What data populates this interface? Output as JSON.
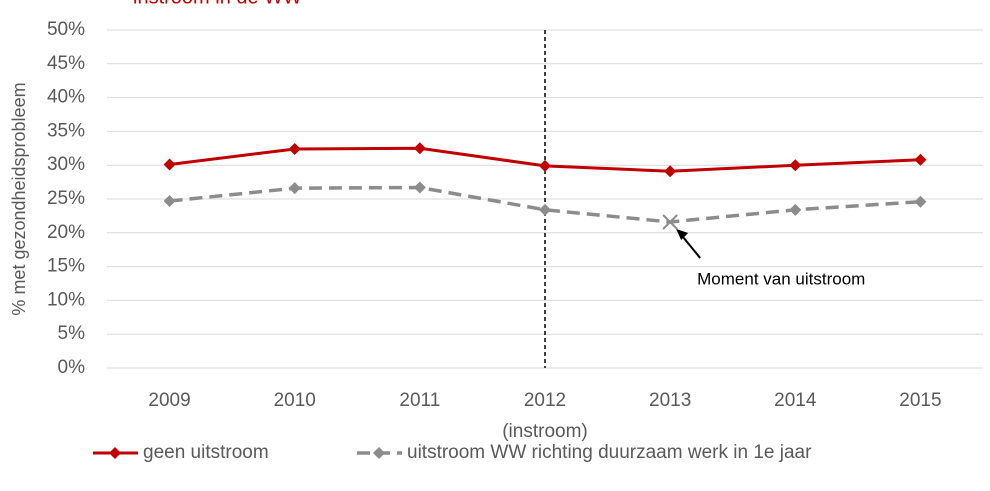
{
  "chart_data": {
    "type": "line",
    "title": "instroom in de WW",
    "y_label": "% met gezondheidsprobleem",
    "categories": [
      "2009",
      "2010",
      "2011",
      "2012",
      "2013",
      "2014",
      "2015"
    ],
    "category_sublabels": [
      null,
      null,
      null,
      "(instroom)",
      null,
      null,
      null
    ],
    "series": [
      {
        "name": "geen uitstroom",
        "color": "#c00000",
        "dashed": false,
        "values": [
          30.1,
          32.4,
          32.5,
          29.9,
          29.1,
          30.0,
          30.8
        ]
      },
      {
        "name": "uitstroom WW richting duurzaam werk in 1e jaar",
        "color": "#8c8c8c",
        "dashed": true,
        "values": [
          24.7,
          26.6,
          26.7,
          23.4,
          21.6,
          23.4,
          24.6
        ]
      }
    ],
    "annotations": [
      {
        "text": "Moment van uitstroom",
        "category": "2013",
        "series": "uitstroom WW richting duurzaam werk in 1e jaar"
      }
    ],
    "ylim": [
      0,
      50
    ],
    "yticks": [
      {
        "value": 0,
        "label": "0%"
      },
      {
        "value": 5,
        "label": "5%"
      },
      {
        "value": 10,
        "label": "10%"
      },
      {
        "value": 15,
        "label": "15%"
      },
      {
        "value": 20,
        "label": "20%"
      },
      {
        "value": 25,
        "label": "25%"
      },
      {
        "value": 30,
        "label": "30%"
      },
      {
        "value": 35,
        "label": "35%"
      },
      {
        "value": 40,
        "label": "40%"
      },
      {
        "value": 45,
        "label": "45%"
      },
      {
        "value": 50,
        "label": "50%"
      }
    ],
    "grid": true,
    "legend": "bottom"
  }
}
